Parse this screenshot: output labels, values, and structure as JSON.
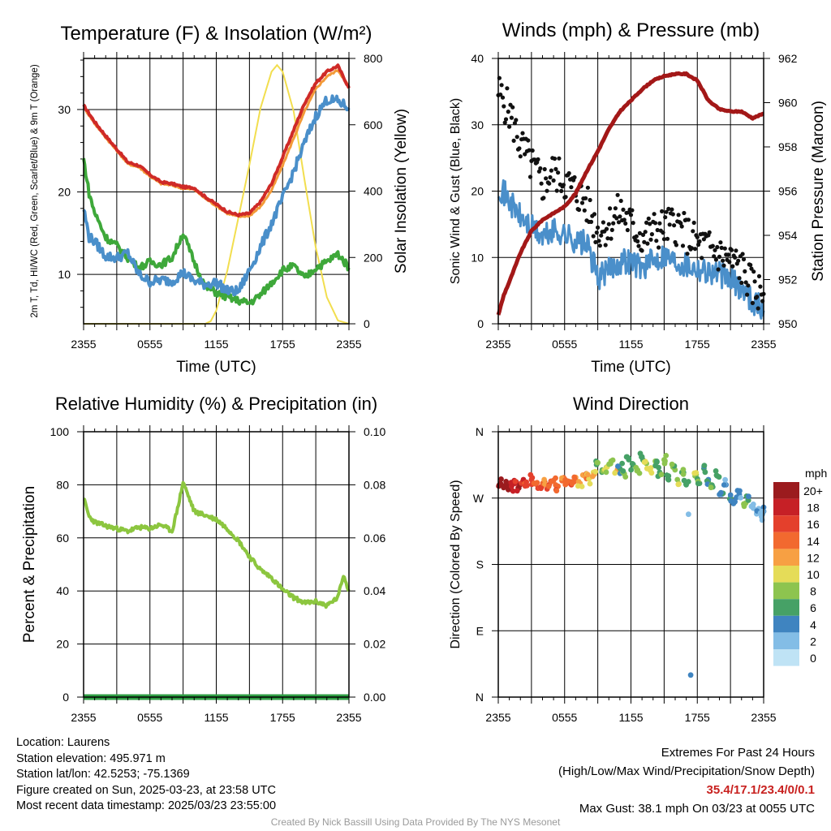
{
  "panels": {
    "temperature": {
      "title": "Temperature (F) & Insolation (W/m²)",
      "ylabel_left": "2m T, Td, HI/WC (Red, Green, Scarlet/Blue) & 9m T (Orange)",
      "ylabel_right": "Solar Insolation (Yellow)",
      "xlabel": "Time (UTC)"
    },
    "winds": {
      "title": "Winds (mph) & Pressure (mb)",
      "ylabel_left": "Sonic Wind & Gust (Blue, Black)",
      "ylabel_right": "Station Pressure (Maroon)",
      "xlabel": "Time (UTC)"
    },
    "humidity": {
      "title": "Relative Humidity (%) & Precipitation (in)",
      "ylabel_left": "Percent & Precipitation"
    },
    "direction": {
      "title": "Wind Direction",
      "ylabel_left": "Direction (Colored By Speed)"
    }
  },
  "legend": {
    "title": "mph",
    "labels": [
      "20+",
      "18",
      "16",
      "14",
      "12",
      "10",
      "8",
      "6",
      "4",
      "2",
      "0"
    ],
    "colors": [
      "#9b1b1e",
      "#c62026",
      "#e4402c",
      "#f2692f",
      "#f7a043",
      "#e5dc58",
      "#8dc44f",
      "#46a166",
      "#3f84c0",
      "#83bde6",
      "#bfe3f5"
    ]
  },
  "chart_data": [
    {
      "type": "line",
      "title": "Temperature (F) & Insolation (W/m²)",
      "xlabel": "Time (UTC)",
      "ylabel": "2m T, Td, HI/WC (Red, Green, Scarlet/Blue) & 9m T (Orange)",
      "ylabel_right": "Solar Insolation (Yellow)",
      "x_ticks": [
        "2355",
        "0555",
        "1155",
        "1755",
        "2355"
      ],
      "y_ticks": [
        10,
        20,
        30
      ],
      "y2_ticks": [
        0,
        200,
        400,
        600,
        800
      ],
      "ylim": [
        4,
        36.2
      ],
      "y2lim": [
        0,
        800
      ],
      "xlim": [
        0,
        24
      ],
      "series": [
        {
          "color": "#cf2a27",
          "axis": "left",
          "x": [
            0,
            1,
            2,
            3,
            4,
            5,
            6,
            7,
            8,
            9,
            10,
            11,
            12,
            13,
            14,
            15,
            16,
            17,
            18,
            19,
            20,
            21,
            22,
            23,
            24
          ],
          "values": [
            30.5,
            28.5,
            26.8,
            25.2,
            23.6,
            23.2,
            22.1,
            21.2,
            21.0,
            20.6,
            20.5,
            19.4,
            18.5,
            17.6,
            17.2,
            17.4,
            18.8,
            21.0,
            24.2,
            27.5,
            30.8,
            33.2,
            34.6,
            35.3,
            32.6
          ]
        },
        {
          "color": "#f39a38",
          "axis": "left",
          "x": [
            0,
            1,
            2,
            3,
            4,
            5,
            6,
            7,
            8,
            9,
            10,
            11,
            12,
            13,
            14,
            15,
            16,
            17,
            18,
            19,
            20,
            21,
            22,
            23,
            24
          ],
          "values": [
            30.3,
            28.3,
            26.6,
            25.0,
            23.4,
            23.0,
            21.9,
            21.0,
            20.8,
            20.4,
            20.3,
            19.2,
            18.3,
            17.4,
            17.0,
            17.1,
            18.2,
            20.2,
            23.2,
            26.5,
            29.8,
            32.5,
            34.0,
            34.8,
            32.8
          ]
        },
        {
          "color": "#4a8fca",
          "axis": "left",
          "x": [
            0,
            0.5,
            1,
            2,
            3,
            4,
            5,
            6,
            7,
            8,
            9,
            10,
            11,
            12,
            13,
            14,
            15,
            16,
            17,
            18,
            19,
            20,
            21,
            22,
            23,
            24
          ],
          "values": [
            18.0,
            14.5,
            14.0,
            12.2,
            12.0,
            12.6,
            10.0,
            9.1,
            9.3,
            9.2,
            10.2,
            9.2,
            8.8,
            9.0,
            8.0,
            7.9,
            10.5,
            13.3,
            16.2,
            19.2,
            22.5,
            26.0,
            29.2,
            31.2,
            31.0,
            30.2
          ]
        },
        {
          "color": "#3ea83a",
          "axis": "left",
          "x": [
            0,
            0.5,
            1,
            2,
            3,
            4,
            5,
            6,
            7,
            8,
            9,
            10,
            11,
            12,
            13,
            14,
            15,
            16,
            17,
            18,
            19,
            20,
            21,
            22,
            23,
            24
          ],
          "values": [
            24.0,
            19.8,
            17.5,
            14.5,
            13.5,
            12.0,
            10.8,
            11.5,
            11.2,
            12.0,
            15.0,
            11.5,
            8.5,
            7.8,
            7.2,
            6.8,
            6.5,
            7.5,
            9.0,
            10.5,
            11.0,
            9.5,
            10.8,
            11.5,
            12.5,
            10.8
          ]
        },
        {
          "color": "#f2de4f",
          "axis": "right",
          "x": [
            0,
            6,
            11,
            11.5,
            12,
            13,
            14,
            15,
            16,
            17,
            17.5,
            18,
            19,
            20,
            21,
            22,
            23,
            24
          ],
          "values": [
            0,
            0,
            0,
            8,
            40,
            160,
            320,
            480,
            650,
            760,
            780,
            760,
            640,
            430,
            230,
            80,
            10,
            0
          ]
        }
      ]
    },
    {
      "type": "line",
      "title": "Winds (mph) & Pressure (mb)",
      "xlabel": "Time (UTC)",
      "ylabel": "Sonic Wind & Gust (Blue, Black)",
      "ylabel_right": "Station Pressure (Maroon)",
      "x_ticks": [
        "2355",
        "0555",
        "1155",
        "1755",
        "2355"
      ],
      "y_ticks": [
        0,
        10,
        20,
        30,
        40
      ],
      "y2_ticks": [
        950,
        952,
        954,
        956,
        958,
        960,
        962
      ],
      "ylim": [
        0,
        40
      ],
      "y2lim": [
        950,
        962
      ],
      "xlim": [
        0,
        24
      ],
      "series": [
        {
          "color": "#4a8fca",
          "axis": "left",
          "x": [
            0,
            1,
            2,
            3,
            4,
            5,
            6,
            7,
            8,
            9,
            10,
            11,
            12,
            13,
            14,
            15,
            16,
            17,
            18,
            19,
            20,
            21,
            22,
            23,
            24
          ],
          "values": [
            21.0,
            18.5,
            16.0,
            14.5,
            13.0,
            14.0,
            13.5,
            12.5,
            12.0,
            7.0,
            8.0,
            9.5,
            9.5,
            8.5,
            9.5,
            10.5,
            9.5,
            9.0,
            8.5,
            8.0,
            7.5,
            6.5,
            5.5,
            3.5,
            2.0
          ]
        },
        {
          "color": "#111111",
          "axis": "left",
          "markers": "dots",
          "x": [
            0,
            1,
            2,
            3,
            4,
            5,
            6,
            7,
            8,
            9,
            10,
            11,
            12,
            13,
            14,
            15,
            16,
            17,
            18,
            19,
            20,
            21,
            22,
            23,
            24
          ],
          "values": [
            35.0,
            32.0,
            27.0,
            24.0,
            21.0,
            23.0,
            21.5,
            20.0,
            18.0,
            14.0,
            15.0,
            17.0,
            15.0,
            13.0,
            14.0,
            14.5,
            15.0,
            13.5,
            12.0,
            11.5,
            10.5,
            9.5,
            8.5,
            5.5,
            4.5
          ]
        },
        {
          "color": "#a31818",
          "axis": "right",
          "x": [
            0,
            0.5,
            1,
            2,
            3,
            4,
            5,
            6,
            7,
            8,
            9,
            10,
            11,
            12,
            13,
            14,
            15,
            16,
            17,
            18,
            19,
            20,
            21,
            22,
            23,
            24
          ],
          "values": [
            950.4,
            951.3,
            951.9,
            953.2,
            954.2,
            954.7,
            955.0,
            955.3,
            955.9,
            956.9,
            957.8,
            958.8,
            959.6,
            960.1,
            960.6,
            961.0,
            961.2,
            961.3,
            961.3,
            961.0,
            960.1,
            959.7,
            959.6,
            959.6,
            959.3,
            959.5
          ]
        }
      ]
    },
    {
      "type": "line",
      "title": "Relative Humidity (%) & Precipitation (in)",
      "ylabel": "Percent & Precipitation",
      "x_ticks": [
        "2355",
        "0555",
        "1155",
        "1755",
        "2355"
      ],
      "y_ticks": [
        0,
        20,
        40,
        60,
        80,
        100
      ],
      "y2_ticks": [
        "0.00",
        "0.02",
        "0.04",
        "0.06",
        "0.08",
        "0.10"
      ],
      "ylim": [
        0,
        100
      ],
      "y2lim": [
        0,
        0.1
      ],
      "xlim": [
        0,
        24
      ],
      "series": [
        {
          "color": "#8cc63f",
          "axis": "left",
          "x": [
            0,
            0.5,
            1,
            2,
            3,
            4,
            5,
            6,
            7,
            8,
            8.5,
            9,
            10,
            11,
            12,
            13,
            14,
            15,
            16,
            17,
            18,
            19,
            20,
            21,
            22,
            23,
            23.5,
            24
          ],
          "values": [
            75.0,
            68.0,
            66.0,
            64.5,
            63.5,
            62.5,
            64.0,
            63.5,
            65.0,
            62.5,
            71.0,
            81.0,
            70.0,
            68.5,
            67.0,
            63.5,
            59.0,
            53.0,
            48.0,
            45.0,
            40.5,
            37.5,
            35.5,
            36.0,
            34.5,
            37.5,
            46.0,
            40.0
          ]
        },
        {
          "color": "#2f9e44",
          "axis": "right",
          "x": [
            0,
            24
          ],
          "values": [
            0,
            0
          ]
        }
      ]
    },
    {
      "type": "scatter",
      "title": "Wind Direction",
      "ylabel": "Direction (Colored By Speed)",
      "x_ticks": [
        "2355",
        "0555",
        "1155",
        "1755",
        "2355"
      ],
      "y_ticks": [
        "N",
        "E",
        "S",
        "W",
        "N"
      ],
      "ylim": [
        0,
        360
      ],
      "xlim": [
        0,
        24
      ],
      "color_by": "speed (mph)",
      "points": [
        {
          "x": 0.2,
          "y": 290,
          "speed": 20
        },
        {
          "x": 0.5,
          "y": 285,
          "speed": 19
        },
        {
          "x": 0.8,
          "y": 288,
          "speed": 20
        },
        {
          "x": 1.2,
          "y": 286,
          "speed": 18
        },
        {
          "x": 1.5,
          "y": 290,
          "speed": 17
        },
        {
          "x": 1.8,
          "y": 284,
          "speed": 18
        },
        {
          "x": 2.2,
          "y": 292,
          "speed": 16
        },
        {
          "x": 2.6,
          "y": 287,
          "speed": 15
        },
        {
          "x": 3.0,
          "y": 295,
          "speed": 16
        },
        {
          "x": 3.4,
          "y": 289,
          "speed": 14
        },
        {
          "x": 3.8,
          "y": 284,
          "speed": 14
        },
        {
          "x": 4.2,
          "y": 292,
          "speed": 13
        },
        {
          "x": 4.6,
          "y": 288,
          "speed": 15
        },
        {
          "x": 5.0,
          "y": 294,
          "speed": 13
        },
        {
          "x": 5.4,
          "y": 286,
          "speed": 14
        },
        {
          "x": 5.8,
          "y": 295,
          "speed": 12
        },
        {
          "x": 6.2,
          "y": 290,
          "speed": 13
        },
        {
          "x": 6.6,
          "y": 292,
          "speed": 14
        },
        {
          "x": 7.0,
          "y": 298,
          "speed": 12
        },
        {
          "x": 7.4,
          "y": 290,
          "speed": 11
        },
        {
          "x": 7.8,
          "y": 300,
          "speed": 12
        },
        {
          "x": 8.2,
          "y": 296,
          "speed": 10
        },
        {
          "x": 8.6,
          "y": 305,
          "speed": 10
        },
        {
          "x": 9.0,
          "y": 318,
          "speed": 7
        },
        {
          "x": 9.4,
          "y": 308,
          "speed": 6
        },
        {
          "x": 9.8,
          "y": 312,
          "speed": 8
        },
        {
          "x": 10.2,
          "y": 320,
          "speed": 7
        },
        {
          "x": 10.6,
          "y": 305,
          "speed": 10
        },
        {
          "x": 11.0,
          "y": 310,
          "speed": 5
        },
        {
          "x": 11.4,
          "y": 303,
          "speed": 7
        },
        {
          "x": 11.8,
          "y": 322,
          "speed": 5
        },
        {
          "x": 12.2,
          "y": 315,
          "speed": 6
        },
        {
          "x": 12.6,
          "y": 308,
          "speed": 8
        },
        {
          "x": 13.0,
          "y": 326,
          "speed": 6
        },
        {
          "x": 13.4,
          "y": 317,
          "speed": 8
        },
        {
          "x": 13.8,
          "y": 311,
          "speed": 9
        },
        {
          "x": 14.2,
          "y": 320,
          "speed": 7
        },
        {
          "x": 14.6,
          "y": 305,
          "speed": 6
        },
        {
          "x": 15.0,
          "y": 322,
          "speed": 8
        },
        {
          "x": 15.4,
          "y": 300,
          "speed": 5
        },
        {
          "x": 15.8,
          "y": 312,
          "speed": 7
        },
        {
          "x": 16.2,
          "y": 295,
          "speed": 8
        },
        {
          "x": 16.6,
          "y": 305,
          "speed": 6
        },
        {
          "x": 17.0,
          "y": 288,
          "speed": 5
        },
        {
          "x": 17.2,
          "y": 248,
          "speed": 2
        },
        {
          "x": 17.4,
          "y": 30,
          "speed": 4
        },
        {
          "x": 17.8,
          "y": 300,
          "speed": 8
        },
        {
          "x": 18.2,
          "y": 290,
          "speed": 6
        },
        {
          "x": 18.6,
          "y": 310,
          "speed": 5
        },
        {
          "x": 19.0,
          "y": 295,
          "speed": 4
        },
        {
          "x": 19.4,
          "y": 285,
          "speed": 6
        },
        {
          "x": 19.8,
          "y": 300,
          "speed": 5
        },
        {
          "x": 20.2,
          "y": 275,
          "speed": 4
        },
        {
          "x": 20.6,
          "y": 288,
          "speed": 3
        },
        {
          "x": 21.0,
          "y": 270,
          "speed": 5
        },
        {
          "x": 21.4,
          "y": 265,
          "speed": 4
        },
        {
          "x": 21.8,
          "y": 275,
          "speed": 3
        },
        {
          "x": 22.2,
          "y": 262,
          "speed": 7
        },
        {
          "x": 22.6,
          "y": 268,
          "speed": 4
        },
        {
          "x": 23.0,
          "y": 258,
          "speed": 3
        },
        {
          "x": 23.4,
          "y": 250,
          "speed": 2
        },
        {
          "x": 23.8,
          "y": 245,
          "speed": 2
        },
        {
          "x": 24.0,
          "y": 252,
          "speed": 3
        }
      ]
    }
  ],
  "info": {
    "location": "Location: Laurens",
    "elevation": "Station elevation: 495.971 m",
    "latlon": "Station lat/lon: 42.5253; -75.1369",
    "created": "Figure created on Sun, 2025-03-23, at 23:58 UTC",
    "recent": "Most recent data timestamp: 2025/03/23 23:55:00"
  },
  "extremes": {
    "heading": "Extremes For Past 24 Hours",
    "subheading": "(High/Low/Max Wind/Precipitation/Snow Depth)",
    "values": "35.4/17.1/23.4/0/0.1",
    "gust": "Max Gust: 38.1 mph On 03/23 at 0055 UTC"
  },
  "credit": "Created By Nick Bassill Using Data Provided By The NYS Mesonet"
}
